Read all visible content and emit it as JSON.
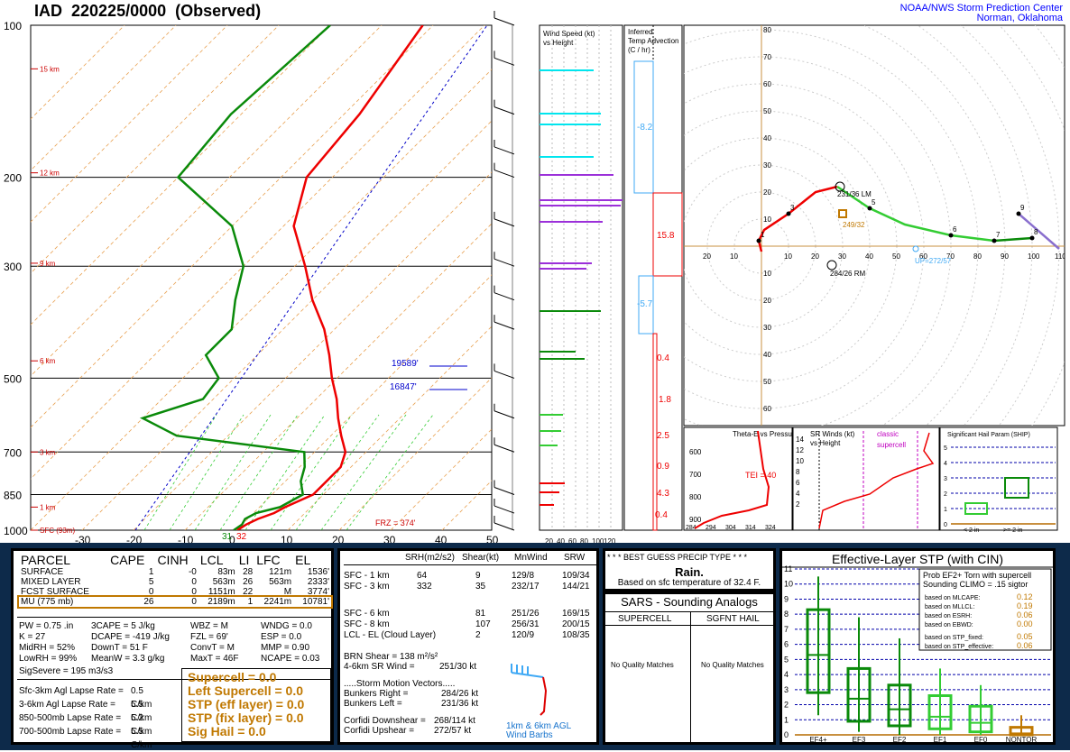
{
  "header": {
    "station": "IAD",
    "datetime": "220225/0000",
    "kind": "(Observed)",
    "org1": "NOAA/NWS Storm Prediction Center",
    "org2": "Norman, Oklahoma"
  },
  "skewt": {
    "pressure_labels": [
      "100",
      "200",
      "300",
      "500",
      "700",
      "850",
      "1000"
    ],
    "temp_ticks": [
      "-30",
      "-20",
      "-10",
      "0",
      "10",
      "20",
      "30",
      "40",
      "50"
    ],
    "height_labels": [
      "15 km",
      "12 km",
      "9 km",
      "6 km",
      "3 km",
      "1 km",
      "SFC (93m)"
    ],
    "sfc_temps": [
      "31",
      "32"
    ],
    "frz_label": "FRZ = 374'",
    "annot1": "19589'",
    "annot2": "16847'"
  },
  "wind_profile": {
    "title1": "Wind Speed (kt)",
    "title2": "vs Height",
    "xticks": [
      "20",
      "40",
      "60",
      "80",
      "100",
      "120"
    ]
  },
  "temp_adv": {
    "title1": "Inferred",
    "title2": "Temp Advection",
    "title3": "(C / hr)",
    "vals": [
      "-8.2",
      "15.8",
      "-5.7",
      "0.4",
      "1.8",
      "2.5",
      "0.9",
      "4.3",
      "0.4"
    ]
  },
  "hodograph": {
    "axis_labels": [
      "80",
      "70",
      "60",
      "50",
      "40",
      "30",
      "20",
      "10",
      "10",
      "20",
      "30",
      "40",
      "50",
      "60"
    ],
    "x_labels": [
      "20",
      "10",
      "10",
      "20",
      "30",
      "40",
      "50",
      "60",
      "70",
      "80",
      "90",
      "100",
      "110"
    ],
    "lm": "231/36 LM",
    "rm": "284/26 RM",
    "mean": "249/32",
    "upshear": "UP=272/57",
    "pts": [
      "1",
      "3",
      "5",
      "6",
      "7",
      "8",
      "9"
    ]
  },
  "mini": {
    "thetae_title": "Theta-E vs Pressure",
    "thetae_tei": "TEI = 40",
    "thetae_p": [
      "600",
      "700",
      "800",
      "900"
    ],
    "thetae_t": [
      "284",
      "294",
      "304",
      "314",
      "324"
    ],
    "srw_title1": "SR Winds (kt)",
    "srw_title2": "vs Height",
    "srw_classic": "classic",
    "srw_supercell": "supercell",
    "srw_h": [
      "14",
      "12",
      "10",
      "8",
      "6",
      "4",
      "2"
    ],
    "ship_title": "Significant Hail Param (SHIP)",
    "ship_y": [
      "5",
      "4",
      "3",
      "2",
      "1",
      "0"
    ],
    "ship_x1": "< 2 in",
    "ship_x2": ">= 2 in"
  },
  "parcel": {
    "headers": [
      "PARCEL",
      "CAPE",
      "CINH",
      "LCL",
      "LI",
      "LFC",
      "EL"
    ],
    "rows": [
      [
        "SURFACE",
        "1",
        "-0",
        "83m",
        "28",
        "121m",
        "1536'"
      ],
      [
        "MIXED LAYER",
        "5",
        "0",
        "563m",
        "26",
        "563m",
        "2333'"
      ],
      [
        "FCST SURFACE",
        "0",
        "0",
        "1151m",
        "22",
        "M",
        "3774'"
      ],
      [
        "MU    (775 mb)",
        "26",
        "0",
        "2189m",
        "1",
        "2241m",
        "10781'"
      ]
    ],
    "indices": [
      [
        "PW = 0.75 .in",
        "3CAPE = 5 J/kg",
        "WBZ = M",
        "WNDG = 0.0"
      ],
      [
        "K = 27",
        "DCAPE = -419 J/kg",
        "FZL = 69'",
        "ESP = 0.0"
      ],
      [
        "MidRH = 52%",
        "DownT = 51 F",
        "ConvT = M",
        "MMP = 0.90"
      ],
      [
        "LowRH = 99%",
        "MeanW = 3.3 g/kg",
        "MaxT = 46F",
        "NCAPE = 0.03"
      ]
    ],
    "sigsevere": "SigSevere = 195 m3/s3",
    "lapse": [
      [
        "Sfc-3km Agl Lapse Rate =",
        "0.5 C/km"
      ],
      [
        "3-6km Agl Lapse Rate =",
        "5.5 C/km"
      ],
      [
        "850-500mb Lapse Rate =",
        "5.2 C/km"
      ],
      [
        "700-500mb Lapse Rate =",
        "5.5 C/km"
      ]
    ],
    "params": [
      "Supercell = 0.0",
      "Left Supercell = 0.0",
      "STP (eff layer) = 0.0",
      "STP (fix layer) = 0.0",
      "Sig Hail = 0.0"
    ]
  },
  "kinematic": {
    "headers": [
      "SRH(m2/s2)",
      "Shear(kt)",
      "MnWind",
      "SRW"
    ],
    "rows": [
      [
        "SFC - 1 km",
        "64",
        "9",
        "129/8",
        "109/34"
      ],
      [
        "SFC - 3 km",
        "332",
        "35",
        "232/17",
        "144/21"
      ],
      [
        "SFC - 6 km",
        "",
        "81",
        "251/26",
        "169/15"
      ],
      [
        "SFC - 8 km",
        "",
        "107",
        "256/31",
        "200/15"
      ],
      [
        "LCL - EL (Cloud Layer)",
        "",
        "2",
        "120/9",
        "108/35"
      ]
    ],
    "brn": "BRN Shear = 138 m²/s²",
    "srw46": "4-6km SR Wind =",
    "srw46v": "251/30 kt",
    "smv": ".....Storm Motion Vectors.....",
    "br": "Bunkers Right =",
    "brv": "284/26 kt",
    "bl": "Bunkers Left =",
    "blv": "231/36 kt",
    "cd": "Corfidi Downshear =",
    "cdv": "268/114 kt",
    "cu": "Corfidi Upshear =",
    "cuv": "272/57 kt",
    "barbs1": "1km & 6km AGL",
    "barbs2": "Wind Barbs"
  },
  "precip": {
    "title": "* * * BEST GUESS PRECIP TYPE * * *",
    "type": "Rain.",
    "note": "Based on sfc temperature of 32.4 F."
  },
  "sars": {
    "title": "SARS - Sounding Analogs",
    "col1": "SUPERCELL",
    "col2": "SGFNT HAIL",
    "nq1": "No Quality Matches",
    "nq2": "No Quality Matches"
  },
  "stp": {
    "title": "Effective-Layer STP (with CIN)",
    "prob1": "Prob EF2+ Torn with supercell",
    "prob2": "Sounding CLIMO = .15 sigtor",
    "basis": [
      [
        "based on MLCAPE:",
        "0.12"
      ],
      [
        "based on MLLCL:",
        "0.19"
      ],
      [
        "based on ESRH:",
        "0.06"
      ],
      [
        "based on EBWD:",
        "0.00"
      ],
      [
        "based on STP_fixed:",
        "0.05"
      ],
      [
        "based on STP_effective:",
        "0.06"
      ]
    ],
    "yticks": [
      "11",
      "10",
      "9",
      "8",
      "7",
      "6",
      "5",
      "4",
      "3",
      "2",
      "1",
      "0"
    ],
    "cats": [
      "EF4+",
      "EF3",
      "EF2",
      "EF1",
      "EF0",
      "NONTOR"
    ]
  },
  "chart_data": [
    {
      "type": "line",
      "title": "IAD 220225/0000 (Observed)",
      "note": "Skew-T log-P sounding",
      "pressure_mb": [
        1000,
        975,
        950,
        925,
        900,
        850,
        800,
        750,
        700,
        650,
        600,
        550,
        500,
        450,
        400,
        350,
        300,
        250,
        200,
        150,
        100
      ],
      "series": [
        {
          "name": "temperature",
          "unit": "C",
          "values": [
            0.2,
            0.8,
            2,
            4,
            5,
            8,
            8,
            8,
            6,
            2,
            -2,
            -6,
            -11,
            -16,
            -22,
            -30,
            -38,
            -48,
            -55,
            -57,
            -62
          ]
        },
        {
          "name": "dewpoint",
          "unit": "C",
          "values": [
            -0.5,
            0,
            -0.5,
            0.5,
            4,
            6,
            3,
            1,
            -2,
            -30,
            -40,
            -32,
            -33,
            -40,
            -40,
            -45,
            -50,
            -60,
            -80,
            -82,
            -80
          ]
        }
      ],
      "ylim": [
        1000,
        100
      ],
      "xlim": [
        -30,
        50
      ]
    },
    {
      "type": "line",
      "title": "Hodograph",
      "x": [
        0,
        -1,
        1,
        10,
        20,
        28,
        40,
        53,
        70,
        86,
        100,
        110,
        95
      ],
      "y": [
        -2,
        2,
        6,
        12,
        20,
        22,
        14,
        8,
        4,
        2,
        3,
        -1,
        12
      ]
    },
    {
      "type": "bar",
      "title": "Effective-Layer STP (with CIN)",
      "categories": [
        "EF4+",
        "EF3",
        "EF2",
        "EF1",
        "EF0",
        "NONTOR"
      ],
      "series": [
        {
          "name": "median",
          "values": [
            5.3,
            2.4,
            1.7,
            1.2,
            0.8,
            0.1
          ]
        },
        {
          "name": "q25",
          "values": [
            2.8,
            0.9,
            0.6,
            0.4,
            0.2,
            0
          ]
        },
        {
          "name": "q75",
          "values": [
            8.3,
            4.4,
            3.3,
            2.6,
            1.9,
            0.5
          ]
        }
      ],
      "ylim": [
        0,
        11
      ]
    }
  ]
}
